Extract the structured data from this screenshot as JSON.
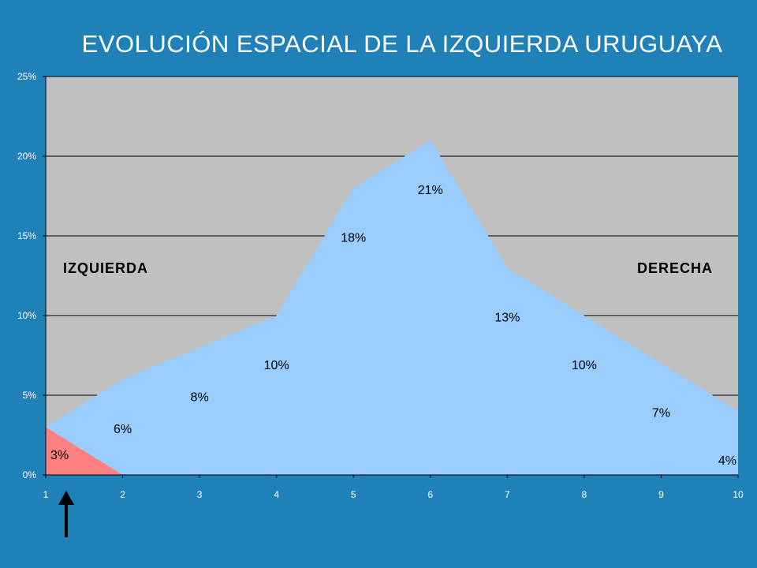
{
  "chart_data": {
    "type": "area",
    "title": "EVOLUCIÓN ESPACIAL DE LA IZQUIERDA URUGUAYA",
    "x": [
      1,
      2,
      3,
      4,
      5,
      6,
      7,
      8,
      9,
      10
    ],
    "x_tick_labels": [
      "1",
      "2",
      "3",
      "4",
      "5",
      "6",
      "7",
      "8",
      "9",
      "10"
    ],
    "y_tick_labels": [
      "0%",
      "5%",
      "10%",
      "15%",
      "20%",
      "25%"
    ],
    "ylim": [
      0,
      25
    ],
    "grid": true,
    "series": [
      {
        "color": "#99ccff",
        "values": [
          3,
          6,
          8,
          10,
          18,
          21,
          13,
          10,
          7,
          4
        ],
        "data_labels": [
          "",
          "6%",
          "8%",
          "10%",
          "18%",
          "21%",
          "13%",
          "10%",
          "7%",
          "4%"
        ]
      },
      {
        "color": "#ff8080",
        "values": [
          3,
          0,
          null,
          null,
          null,
          null,
          null,
          null,
          null,
          null
        ],
        "data_labels": [
          "3%",
          "",
          "",
          "",
          "",
          "",
          "",
          "",
          "",
          ""
        ]
      }
    ],
    "annotations": {
      "left": "IZQUIERDA",
      "right": "DERECHA"
    },
    "marker": "up-arrow-at-x-1"
  },
  "colors": {
    "background": "#2080b8",
    "plot_area": "#c0c0c0",
    "main_area": "#99ccff",
    "left_area": "#ff8080"
  }
}
